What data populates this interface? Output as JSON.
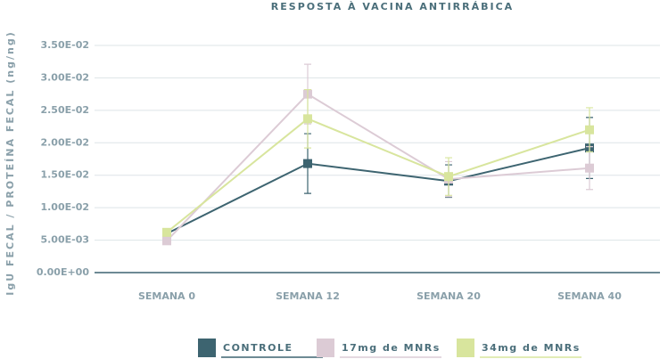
{
  "chart_data": {
    "type": "line",
    "title": "RESPOSTA À VACINA ANTIRRÁBICA",
    "y_label": "IgU FECAL / PROTEÍNA FECAL (ng/ng)",
    "categories": [
      "SEMANA 0",
      "SEMANA 12",
      "SEMANA 20",
      "SEMANA 40"
    ],
    "series": [
      {
        "name": "CONTROLE",
        "color": "#3d6470",
        "values": [
          0.006,
          0.0168,
          0.0141,
          0.0192
        ],
        "errors": [
          0.0003,
          0.0046,
          0.0025,
          0.0047
        ]
      },
      {
        "name": "17mg de MNRs",
        "color": "#dccbd5",
        "values": [
          0.0049,
          0.0275,
          0.0144,
          0.0161
        ],
        "errors": [
          0.0003,
          0.0046,
          0.0027,
          0.0033
        ]
      },
      {
        "name": "34mg de MNRs",
        "color": "#d8e59d",
        "values": [
          0.0062,
          0.0237,
          0.0148,
          0.022
        ],
        "errors": [
          0.0003,
          0.0045,
          0.0029,
          0.0034
        ]
      }
    ],
    "ylim": [
      0,
      0.035
    ],
    "yticks": [
      {
        "value": 0,
        "label": "0.00E+00"
      },
      {
        "value": 0.005,
        "label": "5.00E-03"
      },
      {
        "value": 0.01,
        "label": "1.00E-02"
      },
      {
        "value": 0.015,
        "label": "1.50E-02"
      },
      {
        "value": 0.02,
        "label": "2.00E-02"
      },
      {
        "value": 0.025,
        "label": "2.50E-02"
      },
      {
        "value": 0.03,
        "label": "3.00E-02"
      },
      {
        "value": 0.035,
        "label": "3.50E-02"
      }
    ],
    "grid": true
  }
}
